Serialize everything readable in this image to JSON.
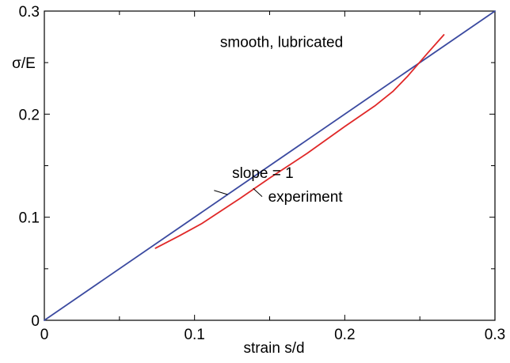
{
  "colors": {
    "background": "#ffffff",
    "axes": "#000000",
    "series_slope": "#3b4aa0",
    "series_experiment": "#e02828"
  },
  "chart_data": {
    "type": "line",
    "xlabel": "strain s/d",
    "ylabel": "σ/E",
    "xlim": [
      0,
      0.3
    ],
    "ylim": [
      0,
      0.3
    ],
    "x_ticks": [
      0,
      0.1,
      0.2,
      0.3
    ],
    "y_ticks": [
      0,
      0.1,
      0.2,
      0.3
    ],
    "x_tick_labels": [
      "0",
      "0.1",
      "0.2",
      "0.3"
    ],
    "y_tick_labels": [
      "0",
      "0.1",
      "0.2",
      "0.3"
    ],
    "x_minor_ticks": [
      0.05,
      0.15,
      0.25
    ],
    "y_minor_ticks": [
      0.05,
      0.15,
      0.25
    ],
    "grid": false,
    "legend": "none",
    "series": [
      {
        "id": "slope",
        "color": "#3b4aa0",
        "points": [
          [
            0,
            0
          ],
          [
            0.3,
            0.3
          ]
        ]
      },
      {
        "id": "experiment",
        "color": "#e02828",
        "points": [
          [
            0.074,
            0.07
          ],
          [
            0.09,
            0.082
          ],
          [
            0.105,
            0.094
          ],
          [
            0.13,
            0.118
          ],
          [
            0.15,
            0.138
          ],
          [
            0.175,
            0.162
          ],
          [
            0.2,
            0.188
          ],
          [
            0.22,
            0.208
          ],
          [
            0.232,
            0.222
          ],
          [
            0.242,
            0.237
          ],
          [
            0.255,
            0.259
          ],
          [
            0.266,
            0.277
          ]
        ]
      }
    ],
    "annotations": [
      {
        "id": "condition",
        "text": "smooth, lubricated",
        "x": 0.117,
        "y": 0.265
      },
      {
        "id": "slope-label",
        "text": "slope = 1",
        "x": 0.125,
        "y": 0.138,
        "pointer": [
          [
            0.113,
            0.126
          ],
          [
            0.122,
            0.122
          ]
        ]
      },
      {
        "id": "experiment-label",
        "text": "experiment",
        "x": 0.149,
        "y": 0.115,
        "pointer": [
          [
            0.139,
            0.128
          ],
          [
            0.145,
            0.12
          ]
        ]
      }
    ]
  }
}
